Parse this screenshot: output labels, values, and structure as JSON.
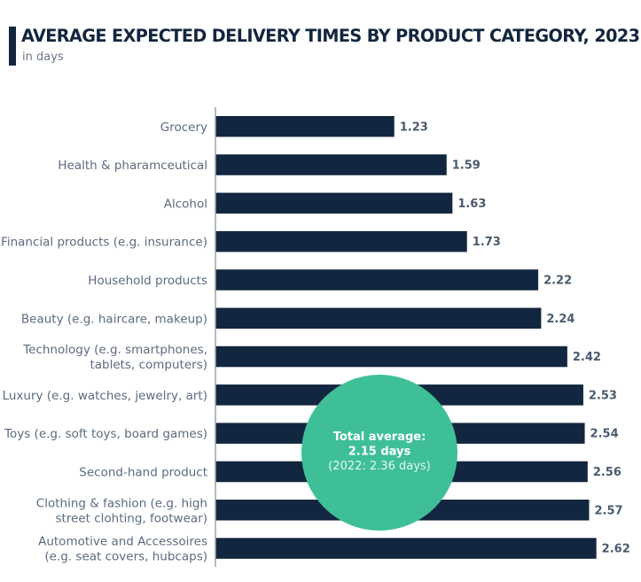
{
  "header": {
    "title": "AVERAGE EXPECTED DELIVERY TIMES BY PRODUCT CATEGORY, 2023",
    "subtitle": "in days"
  },
  "colors": {
    "bar": "#13263f",
    "accent": "#13263f",
    "highlight_circle": "#3ebf98",
    "axis": "#9aa3ad",
    "label": "#5c6b7e",
    "value_label": "#4a5a6e"
  },
  "chart_data": {
    "type": "bar",
    "orientation": "horizontal",
    "title": "AVERAGE EXPECTED DELIVERY TIMES BY PRODUCT CATEGORY, 2023",
    "subtitle": "in days",
    "xlabel": "",
    "ylabel": "",
    "xlim": [
      0,
      2.62
    ],
    "grid": false,
    "categories": [
      [
        "Grocery"
      ],
      [
        "Health & pharamceutical"
      ],
      [
        "Alcohol"
      ],
      [
        "Financial products (e.g. insurance)"
      ],
      [
        "Household products"
      ],
      [
        "Beauty (e.g. haircare, makeup)"
      ],
      [
        "Technology (e.g. smartphones,",
        "tablets, computers)"
      ],
      [
        "Luxury (e.g. watches, jewelry, art)"
      ],
      [
        "Toys (e.g. soft toys, board games)"
      ],
      [
        "Second-hand product"
      ],
      [
        "Clothing & fashion (e.g. high",
        "street clohting, footwear)"
      ],
      [
        "Automotive and Accessoires",
        "(e.g. seat covers, hubcaps)"
      ]
    ],
    "values": [
      1.23,
      1.59,
      1.63,
      1.73,
      2.22,
      2.24,
      2.42,
      2.53,
      2.54,
      2.56,
      2.57,
      2.62
    ],
    "value_labels": [
      "1.23",
      "1.59",
      "1.63",
      "1.73",
      "2.22",
      "2.24",
      "2.42",
      "2.53",
      "2.54",
      "2.56",
      "2.57",
      "2.62"
    ],
    "annotation": {
      "lines": [
        "Total average:",
        "2.15 days",
        "(2022: 2.36 days)"
      ],
      "total_average_2023": 2.15,
      "total_average_2022": 2.36
    }
  }
}
